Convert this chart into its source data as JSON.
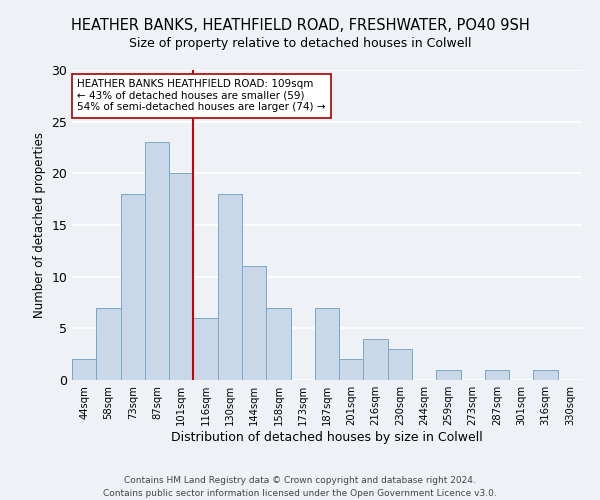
{
  "title": "HEATHER BANKS, HEATHFIELD ROAD, FRESHWATER, PO40 9SH",
  "subtitle": "Size of property relative to detached houses in Colwell",
  "xlabel": "Distribution of detached houses by size in Colwell",
  "ylabel": "Number of detached properties",
  "bar_labels": [
    "44sqm",
    "58sqm",
    "73sqm",
    "87sqm",
    "101sqm",
    "116sqm",
    "130sqm",
    "144sqm",
    "158sqm",
    "173sqm",
    "187sqm",
    "201sqm",
    "216sqm",
    "230sqm",
    "244sqm",
    "259sqm",
    "273sqm",
    "287sqm",
    "301sqm",
    "316sqm",
    "330sqm"
  ],
  "bar_heights": [
    2,
    7,
    18,
    23,
    20,
    6,
    18,
    11,
    7,
    0,
    7,
    2,
    4,
    3,
    0,
    1,
    0,
    1,
    0,
    1,
    0
  ],
  "bar_color": "#c8d8e8",
  "bar_edge_color": "#7aa8c8",
  "vline_x": 4.5,
  "vline_color": "#cc0000",
  "annotation_text": "HEATHER BANKS HEATHFIELD ROAD: 109sqm\n← 43% of detached houses are smaller (59)\n54% of semi-detached houses are larger (74) →",
  "annotation_box_color": "#ffffff",
  "annotation_box_edge": "#aa0000",
  "ylim": [
    0,
    30
  ],
  "yticks": [
    0,
    5,
    10,
    15,
    20,
    25,
    30
  ],
  "footer_line1": "Contains HM Land Registry data © Crown copyright and database right 2024.",
  "footer_line2": "Contains public sector information licensed under the Open Government Licence v3.0.",
  "background_color": "#eef2f7",
  "grid_color": "#ffffff"
}
